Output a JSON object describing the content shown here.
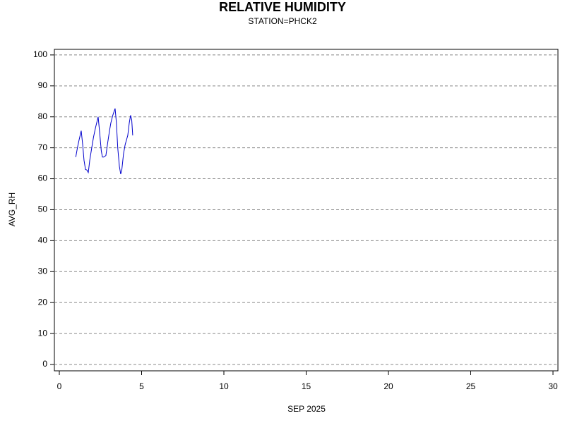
{
  "chart_data": {
    "type": "line",
    "title": "RELATIVE HUMIDITY",
    "subtitle": "STATION=PHCK2",
    "x_label": "SEP 2025",
    "y_label": "AVG_RH",
    "x": [
      1.0,
      1.1,
      1.2,
      1.33,
      1.42,
      1.5,
      1.59,
      1.68,
      1.76,
      1.85,
      1.97,
      2.08,
      2.2,
      2.36,
      2.45,
      2.55,
      2.62,
      2.7,
      2.83,
      2.95,
      3.05,
      3.13,
      3.25,
      3.39,
      3.47,
      3.55,
      3.65,
      3.73,
      3.8,
      3.9,
      4.0,
      4.16,
      4.25,
      4.33,
      4.4,
      4.46
    ],
    "series": [
      {
        "name": "AVG_RH",
        "color": "#0000cc",
        "values": [
          67,
          70,
          72.5,
          75.5,
          71,
          66,
          63,
          62.8,
          62,
          66,
          70,
          73.5,
          76.5,
          80,
          75,
          69,
          67,
          67,
          67.5,
          72,
          75.5,
          78,
          80.5,
          82.7,
          78,
          70,
          64,
          61.5,
          63,
          68,
          71,
          74,
          78,
          80.5,
          79,
          74
        ]
      }
    ],
    "xlim": [
      -0.3,
      30.3
    ],
    "ylim": [
      -2.05,
      101.8
    ],
    "xticks": [
      0,
      5,
      10,
      15,
      20,
      25,
      30
    ],
    "yticks": [
      0,
      10,
      20,
      30,
      40,
      50,
      60,
      70,
      80,
      90,
      100
    ],
    "grid": true
  }
}
